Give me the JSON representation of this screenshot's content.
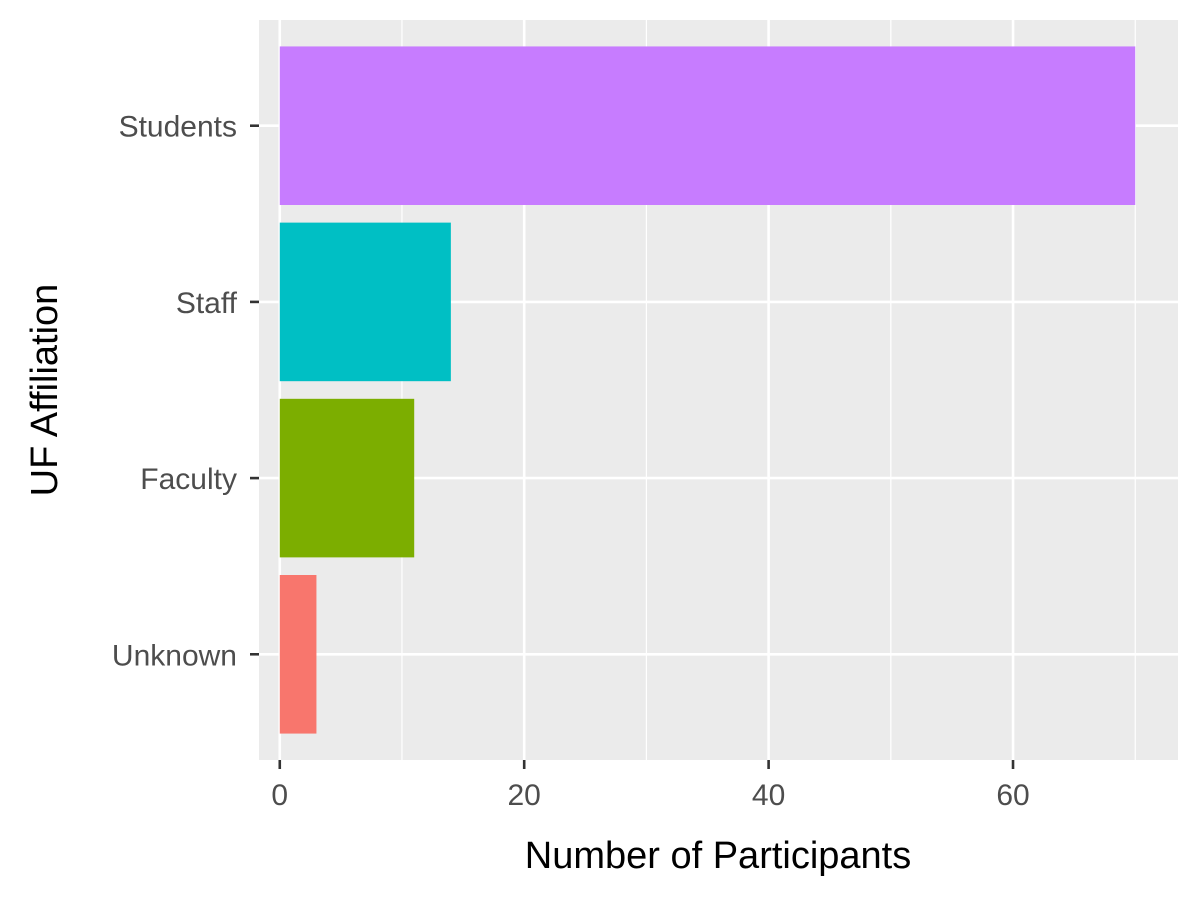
{
  "chart_data": {
    "type": "bar",
    "orientation": "horizontal",
    "title": "",
    "xlabel": "Number of Participants",
    "ylabel": "UF Affiliation",
    "categories": [
      "Unknown",
      "Faculty",
      "Staff",
      "Students"
    ],
    "values": [
      3,
      11,
      14,
      70
    ],
    "colors": [
      "#F8766D",
      "#7CAE00",
      "#00BFC4",
      "#C77CFF"
    ],
    "xlim": [
      -1.7,
      73.5
    ],
    "xticks": [
      0,
      20,
      40,
      60
    ],
    "grid": true,
    "legend": "none",
    "panel_background": "#EBEBEB",
    "grid_color": "#FFFFFF"
  }
}
